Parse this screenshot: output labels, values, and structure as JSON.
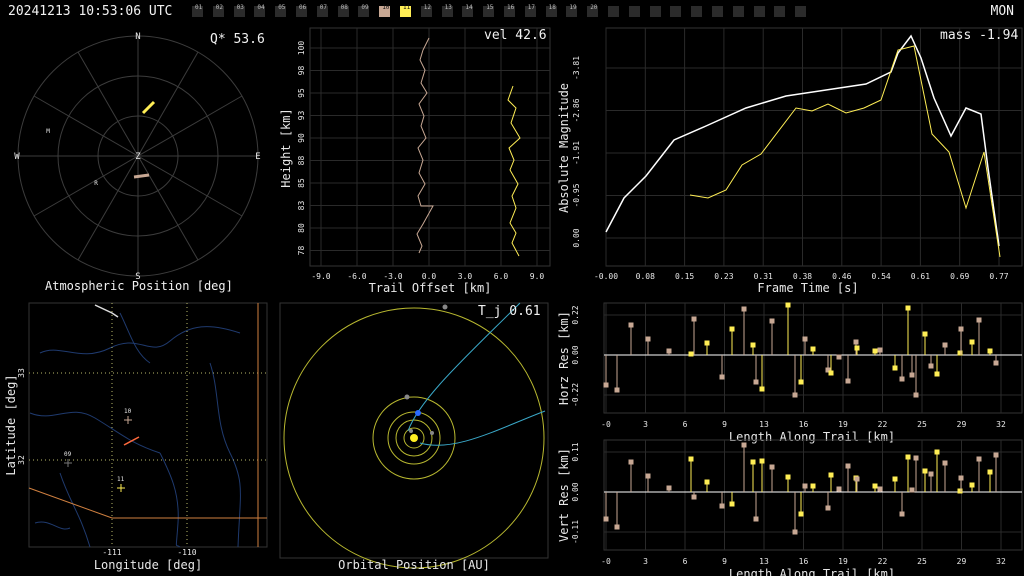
{
  "header": {
    "timestamp": "20241213 10:53:06 UTC",
    "station": "MON",
    "cameras": [
      "01",
      "02",
      "03",
      "04",
      "05",
      "06",
      "07",
      "08",
      "09",
      "10",
      "11",
      "12",
      "13",
      "14",
      "15",
      "16",
      "17",
      "18",
      "19",
      "20"
    ],
    "active_colors": {
      "10": "#c8a894",
      "11": "#ffee55"
    }
  },
  "polar": {
    "label": "Atmospheric Position [deg]",
    "corner": "Q* 53.6",
    "directions": {
      "n": "N",
      "e": "E",
      "s": "S",
      "w": "W",
      "z": "Z"
    },
    "markers": {
      "m": "M",
      "r": "R"
    }
  },
  "trail": {
    "corner": "vel 42.6",
    "ylabel": "Height [km]",
    "xlabel": "Trail Offset [km]",
    "yticks": [
      "100",
      "98",
      "95",
      "93",
      "90",
      "88",
      "85",
      "83",
      "80",
      "78"
    ],
    "xticks": [
      "-9.0",
      "-6.0",
      "-3.0",
      "0.0",
      "3.0",
      "6.0",
      "9.0"
    ]
  },
  "map": {
    "ylabel": "Latitude [deg]",
    "xlabel": "Longitude [deg]",
    "yticks": [
      "33",
      "32"
    ],
    "xticks": [
      "-111",
      "-110"
    ],
    "stations": {
      "s09": "09",
      "s10": "10",
      "s11": "11"
    }
  },
  "orbit": {
    "corner": "T_j 0.61",
    "xlabel": "Orbital Position [AU]"
  },
  "magnitude": {
    "corner": "mass -1.94",
    "ylabel": "Absolute Magnitude",
    "xlabel": "Frame Time [s]",
    "yticks": [
      "-3.81",
      "-2.86",
      "-1.91",
      "-0.95",
      "0.00"
    ],
    "xticks": [
      "-0.00",
      "0.08",
      "0.15",
      "0.23",
      "0.31",
      "0.38",
      "0.46",
      "0.54",
      "0.61",
      "0.69",
      "0.77"
    ]
  },
  "horz_res": {
    "ylabel": "Horz Res [km]",
    "xlabel": "Length Along Trail [km]",
    "yticks": [
      "0.22",
      "0.00",
      "-0.22"
    ],
    "xticks": [
      "-0",
      "3",
      "6",
      "9",
      "13",
      "16",
      "19",
      "22",
      "25",
      "29",
      "32"
    ]
  },
  "vert_res": {
    "ylabel": "Vert Res [km]",
    "xlabel": "Length Along Trail [km]",
    "yticks": [
      "0.11",
      "0.00",
      "-0.11"
    ],
    "xticks": [
      "-0",
      "3",
      "6",
      "9",
      "13",
      "16",
      "19",
      "22",
      "25",
      "29",
      "32"
    ]
  },
  "colors": {
    "cam10": "#c8a894",
    "cam11": "#ffee55",
    "grid": "#3a3a3a",
    "dotgrid": "#b7b76a"
  }
}
